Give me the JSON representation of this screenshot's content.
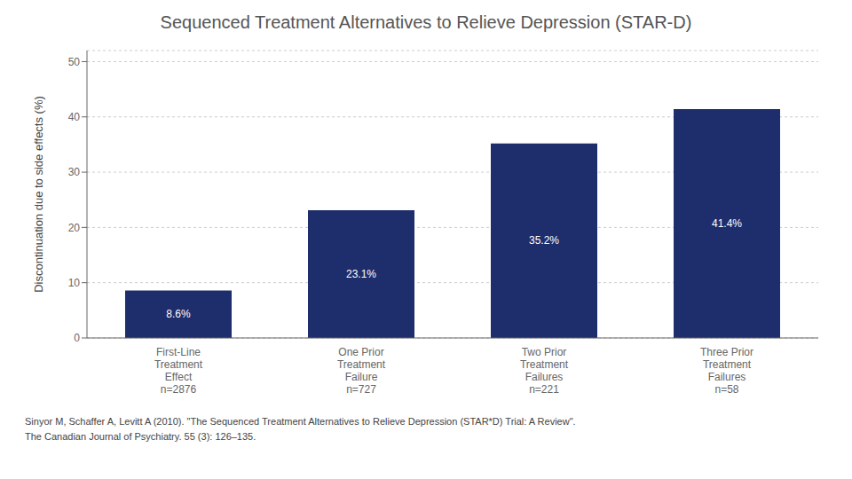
{
  "chart_data": {
    "type": "bar",
    "title": "Sequenced Treatment Alternatives to Relieve Depression (STAR-D)",
    "ylabel": "Discontinuation due to side effects (%)",
    "categories": [
      "First-Line\nTreatment\nEffect\nn=2876",
      "One Prior\nTreatment\nFailure\nn=727",
      "Two Prior\nTreatment\nFailures\nn=221",
      "Three Prior\nTreatment\nFailures\nn=58"
    ],
    "values": [
      8.6,
      23.1,
      35.2,
      41.4
    ],
    "value_labels": [
      "8.6%",
      "23.1%",
      "35.2%",
      "41.4%"
    ],
    "data_labels": true,
    "color": "#1e2d6b",
    "ylim": [
      0,
      52
    ],
    "yticks": [
      0,
      10,
      20,
      30,
      40,
      50
    ],
    "grid": true,
    "annotations": [
      "Sinyor M, Schaffer A, Levitt A (2010). \"The Sequenced Treatment Alternatives to Relieve Depression (STAR*D) Trial: A Review\".\nThe Canadian Journal of Psychiatry. 55 (3): 126–135."
    ]
  }
}
